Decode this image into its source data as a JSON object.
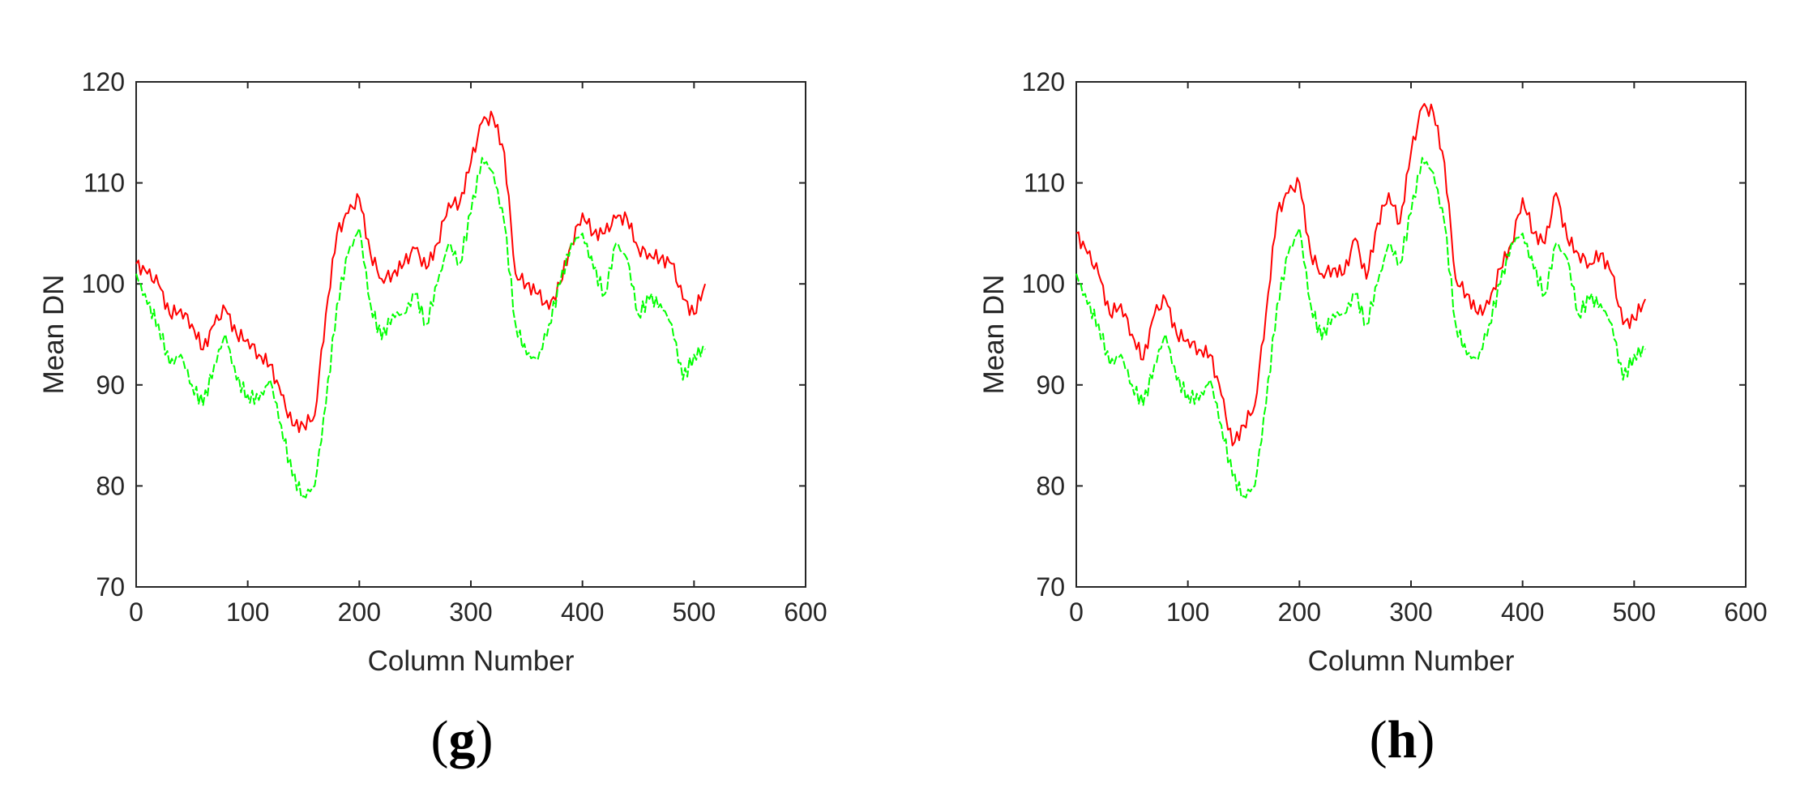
{
  "panels": [
    {
      "caption_open": "(",
      "caption_letter": "g",
      "caption_close": ")"
    },
    {
      "caption_open": "(",
      "caption_letter": "h",
      "caption_close": ")"
    }
  ],
  "chart_data": [
    {
      "type": "line",
      "xlabel": "Column Number",
      "ylabel": "Mean DN",
      "xlim": [
        0,
        600
      ],
      "ylim": [
        70,
        120
      ],
      "xticks": [
        0,
        100,
        200,
        300,
        400,
        500,
        600
      ],
      "yticks": [
        70,
        80,
        90,
        100,
        110,
        120
      ],
      "grid": false,
      "series": [
        {
          "color": "#ff0000",
          "x": [
            0,
            10,
            20,
            30,
            40,
            50,
            60,
            70,
            80,
            90,
            100,
            110,
            120,
            130,
            140,
            150,
            160,
            170,
            180,
            190,
            200,
            210,
            220,
            230,
            240,
            250,
            260,
            270,
            280,
            290,
            300,
            310,
            320,
            330,
            340,
            350,
            360,
            370,
            380,
            390,
            400,
            410,
            420,
            430,
            440,
            450,
            460,
            470,
            480,
            490,
            500,
            510
          ],
          "y": [
            102,
            101,
            100,
            97,
            97.5,
            96,
            93.5,
            96,
            97.5,
            95,
            94.5,
            93,
            92,
            89,
            86,
            86,
            87,
            97,
            105,
            107,
            108.5,
            103,
            100.5,
            101,
            102,
            103.5,
            101.5,
            104,
            108,
            108,
            112,
            116,
            116.5,
            113,
            101,
            100,
            99,
            97.5,
            100,
            104,
            107,
            105,
            105,
            106.5,
            106.5,
            103.5,
            103,
            102.5,
            102,
            98.5,
            97,
            100
          ]
        },
        {
          "color": "#00ff00",
          "x": [
            0,
            10,
            20,
            30,
            40,
            50,
            60,
            70,
            80,
            90,
            100,
            110,
            120,
            130,
            140,
            150,
            160,
            170,
            180,
            190,
            200,
            210,
            220,
            230,
            240,
            250,
            260,
            270,
            280,
            290,
            300,
            310,
            320,
            330,
            340,
            350,
            360,
            370,
            380,
            390,
            400,
            410,
            420,
            430,
            440,
            450,
            460,
            470,
            480,
            490,
            500,
            510
          ],
          "y": [
            101,
            98,
            96,
            92,
            93,
            90,
            88,
            92,
            95,
            90.5,
            89,
            88.5,
            90.5,
            86,
            81,
            79,
            80,
            88,
            98,
            103,
            105.5,
            98,
            94.5,
            97,
            97,
            99,
            96,
            100,
            104,
            102,
            107,
            112.5,
            111,
            106,
            96,
            93,
            92.5,
            96,
            100,
            104,
            105,
            101.5,
            99,
            104,
            102.5,
            97,
            98.5,
            98,
            96,
            90.5,
            93,
            93.5
          ]
        }
      ]
    },
    {
      "type": "line",
      "xlabel": "Column Number",
      "ylabel": "Mean DN",
      "xlim": [
        0,
        600
      ],
      "ylim": [
        70,
        120
      ],
      "xticks": [
        0,
        100,
        200,
        300,
        400,
        500,
        600
      ],
      "yticks": [
        70,
        80,
        90,
        100,
        110,
        120
      ],
      "grid": false,
      "series": [
        {
          "color": "#ff0000",
          "x": [
            0,
            10,
            20,
            30,
            40,
            50,
            60,
            70,
            80,
            90,
            100,
            110,
            120,
            130,
            140,
            150,
            160,
            170,
            180,
            190,
            200,
            210,
            220,
            230,
            240,
            250,
            260,
            270,
            280,
            290,
            300,
            310,
            320,
            330,
            340,
            350,
            360,
            370,
            380,
            390,
            400,
            410,
            420,
            430,
            440,
            450,
            460,
            470,
            480,
            490,
            500,
            510
          ],
          "y": [
            105,
            103,
            101,
            97,
            98,
            95,
            92.5,
            97,
            98.5,
            95,
            94.5,
            93.5,
            93,
            89,
            84,
            86,
            88,
            97,
            107,
            109,
            110,
            103,
            101,
            101.5,
            101,
            104.5,
            100.5,
            106,
            109,
            106,
            113,
            117.5,
            117,
            112,
            100.5,
            99,
            97,
            98,
            101.5,
            104,
            108.5,
            105,
            104,
            109,
            104.5,
            103,
            102,
            103,
            101,
            96,
            96.5,
            98.5
          ]
        },
        {
          "color": "#00ff00",
          "x": [
            0,
            10,
            20,
            30,
            40,
            50,
            60,
            70,
            80,
            90,
            100,
            110,
            120,
            130,
            140,
            150,
            160,
            170,
            180,
            190,
            200,
            210,
            220,
            230,
            240,
            250,
            260,
            270,
            280,
            290,
            300,
            310,
            320,
            330,
            340,
            350,
            360,
            370,
            380,
            390,
            400,
            410,
            420,
            430,
            440,
            450,
            460,
            470,
            480,
            490,
            500,
            510
          ],
          "y": [
            101,
            98,
            96,
            92,
            93,
            90,
            88,
            92,
            95,
            90.5,
            89,
            88.5,
            90.5,
            86,
            81,
            79,
            80,
            88,
            98,
            103,
            105.5,
            98,
            94.5,
            97,
            97,
            99,
            96,
            100,
            104,
            102,
            107,
            112.5,
            111,
            106,
            96,
            93,
            92.5,
            96,
            100,
            104,
            105,
            101.5,
            99,
            104,
            102.5,
            97,
            98.5,
            98,
            96,
            90.5,
            93,
            93.5
          ]
        }
      ]
    }
  ]
}
